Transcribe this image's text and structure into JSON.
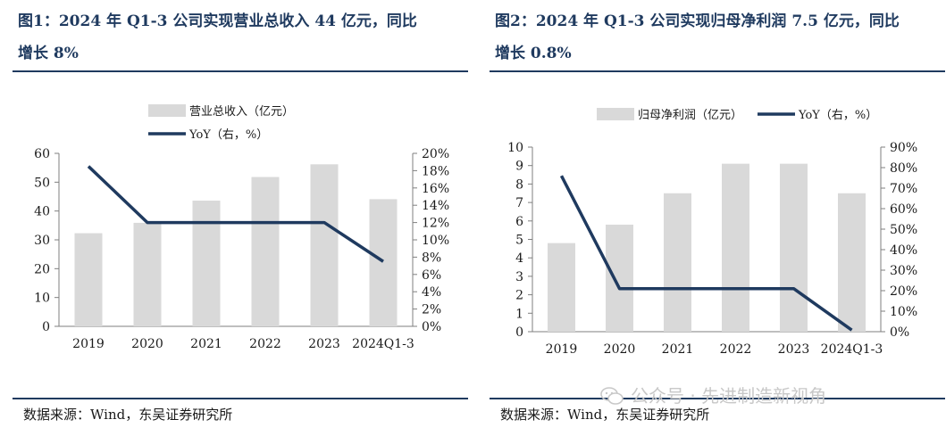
{
  "chart_data": [
    {
      "type": "bar",
      "title": "图1：2024 年 Q1-3 公司实现营业总收入 44 亿元，同比",
      "subtitle": "增长 8%",
      "categories": [
        "2019",
        "2020",
        "2021",
        "2022",
        "2023",
        "2024Q1-3"
      ],
      "series": [
        {
          "name": "营业总收入（亿元）",
          "type": "bar",
          "axis": "left",
          "values": [
            32.3,
            35.9,
            43.6,
            51.8,
            56.2,
            44.1
          ]
        },
        {
          "name": "YoY（右，%）",
          "type": "line",
          "axis": "right",
          "values": [
            18.5,
            12.0,
            12.0,
            12.0,
            12.0,
            7.5
          ]
        }
      ],
      "ylim_left": [
        0,
        60
      ],
      "yticks_left": [
        "0",
        "10",
        "20",
        "30",
        "40",
        "50",
        "60"
      ],
      "ylim_right": [
        0,
        20
      ],
      "yticks_right": [
        "0%",
        "2%",
        "4%",
        "6%",
        "8%",
        "10%",
        "12%",
        "14%",
        "16%",
        "18%",
        "20%"
      ],
      "legend_position": "top",
      "grid": false,
      "colors": {
        "bar": "#d9d9d9",
        "line": "#1f3a5f"
      },
      "source": "数据来源：Wind，东吴证券研究所"
    },
    {
      "type": "bar",
      "title": "图2：2024 年 Q1-3 公司实现归母净利润 7.5 亿元，同比",
      "subtitle": "增长 0.8%",
      "categories": [
        "2019",
        "2020",
        "2021",
        "2022",
        "2023",
        "2024Q1-3"
      ],
      "series": [
        {
          "name": "归母净利润（亿元）",
          "type": "bar",
          "axis": "left",
          "values": [
            4.8,
            5.8,
            7.5,
            9.1,
            9.1,
            7.5
          ]
        },
        {
          "name": "YoY（右，%）",
          "type": "line",
          "axis": "right",
          "values": [
            76,
            21,
            21,
            21,
            21,
            0.8
          ]
        }
      ],
      "ylim_left": [
        0,
        10
      ],
      "yticks_left": [
        "0",
        "1",
        "2",
        "3",
        "4",
        "5",
        "6",
        "7",
        "8",
        "9",
        "10"
      ],
      "ylim_right": [
        0,
        90
      ],
      "yticks_right": [
        "0%",
        "10%",
        "20%",
        "30%",
        "40%",
        "50%",
        "60%",
        "70%",
        "80%",
        "90%"
      ],
      "legend_position": "top",
      "grid": false,
      "colors": {
        "bar": "#d9d9d9",
        "line": "#1f3a5f"
      },
      "source": "数据来源：Wind，东吴证券研究所"
    }
  ],
  "watermark": {
    "text": "公众号 · 先进制造新视角",
    "icon": "wechat-icon"
  }
}
